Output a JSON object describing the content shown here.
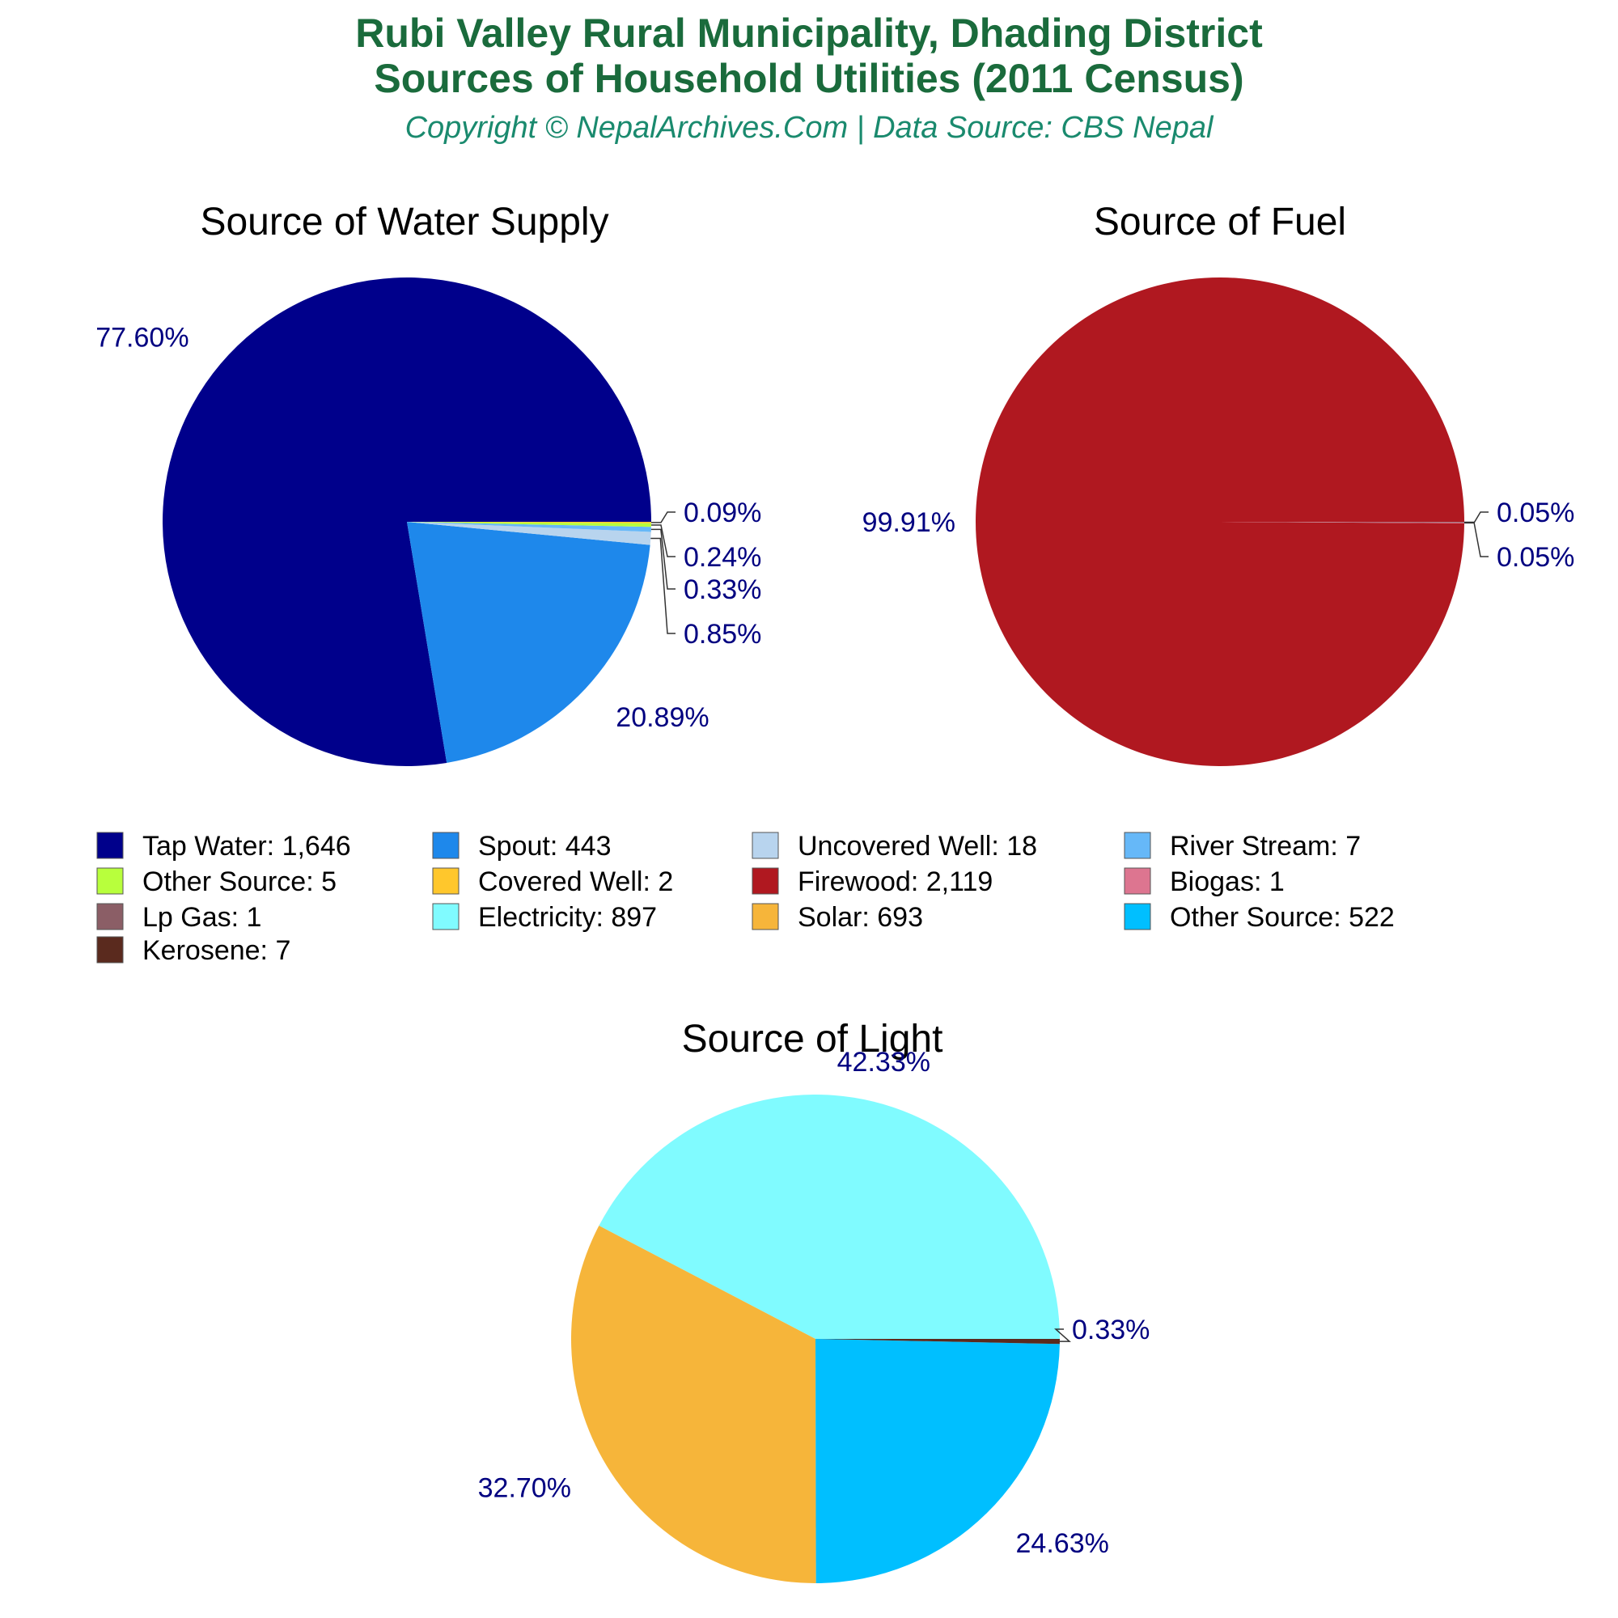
{
  "header": {
    "title_line1": "Rubi Valley Rural Municipality, Dhading District",
    "title_line2": "Sources of Household Utilities (2011 Census)",
    "subtitle": "Copyright © NepalArchives.Com | Data Source: CBS Nepal",
    "title_color": "#1a6b3c",
    "subtitle_color": "#1a8a6e",
    "label_color": "#000080"
  },
  "chart_data": [
    {
      "type": "pie",
      "title": "Source of Water Supply",
      "slices": [
        {
          "label": "Tap Water",
          "value": 1646,
          "pct_label": "77.60%",
          "color": "#00008b"
        },
        {
          "label": "Spout",
          "value": 443,
          "pct_label": "20.89%",
          "color": "#1e88eb"
        },
        {
          "label": "Uncovered Well",
          "value": 18,
          "pct_label": "0.85%",
          "color": "#b8d4ee"
        },
        {
          "label": "River Stream",
          "value": 7,
          "pct_label": "0.33%",
          "color": "#66b8f8"
        },
        {
          "label": "Other Source",
          "value": 5,
          "pct_label": "0.24%",
          "color": "#b8ff3c"
        },
        {
          "label": "Covered Well",
          "value": 2,
          "pct_label": "0.09%",
          "color": "#ffc72c"
        }
      ]
    },
    {
      "type": "pie",
      "title": "Source of Fuel",
      "slices": [
        {
          "label": "Firewood",
          "value": 2119,
          "pct_label": "99.91%",
          "color": "#b01820"
        },
        {
          "label": "Biogas",
          "value": 1,
          "pct_label": "0.05%",
          "color": "#dd7590"
        },
        {
          "label": "Lp Gas",
          "value": 1,
          "pct_label": "0.05%",
          "color": "#8b5e66"
        }
      ]
    },
    {
      "type": "pie",
      "title": "Source of Light",
      "slices": [
        {
          "label": "Electricity",
          "value": 897,
          "pct_label": "42.33%",
          "color": "#80fbff"
        },
        {
          "label": "Solar",
          "value": 693,
          "pct_label": "32.70%",
          "color": "#f6b53a"
        },
        {
          "label": "Other Source",
          "value": 522,
          "pct_label": "24.63%",
          "color": "#00bfff"
        },
        {
          "label": "Kerosene",
          "value": 7,
          "pct_label": "0.33%",
          "color": "#5a2a1e"
        }
      ]
    }
  ],
  "legend": [
    {
      "text": "Tap Water: 1,646",
      "color": "#00008b"
    },
    {
      "text": "Spout: 443",
      "color": "#1e88eb"
    },
    {
      "text": "Uncovered Well: 18",
      "color": "#b8d4ee"
    },
    {
      "text": "River Stream: 7",
      "color": "#66b8f8"
    },
    {
      "text": "Other Source: 5",
      "color": "#b8ff3c"
    },
    {
      "text": "Covered Well: 2",
      "color": "#ffc72c"
    },
    {
      "text": "Firewood: 2,119",
      "color": "#b01820"
    },
    {
      "text": "Biogas: 1",
      "color": "#dd7590"
    },
    {
      "text": "Lp Gas: 1",
      "color": "#8b5e66"
    },
    {
      "text": "Electricity: 897",
      "color": "#80fbff"
    },
    {
      "text": "Solar: 693",
      "color": "#f6b53a"
    },
    {
      "text": "Other Source: 522",
      "color": "#00bfff"
    },
    {
      "text": "Kerosene: 7",
      "color": "#5a2a1e"
    }
  ]
}
